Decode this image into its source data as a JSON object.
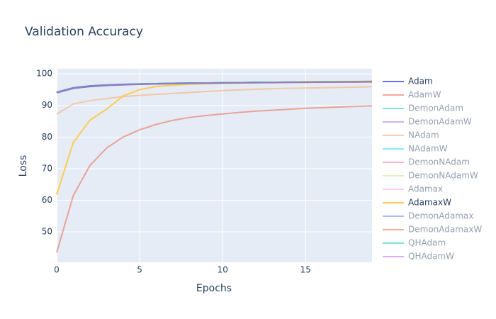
{
  "chart_data": {
    "type": "line",
    "title": "Validation Accuracy",
    "x_label": "Epochs",
    "y_label": "Loss",
    "x": [
      0,
      1,
      2,
      3,
      4,
      5,
      6,
      7,
      8,
      9,
      10,
      11,
      12,
      13,
      14,
      15,
      16,
      17,
      18,
      19
    ],
    "xlim": [
      0,
      19
    ],
    "xticks": [
      0,
      5,
      10,
      15
    ],
    "ylim": [
      40.4,
      101.6
    ],
    "yticks": [
      50,
      60,
      70,
      80,
      90,
      100
    ],
    "grid": true,
    "legend": "right",
    "series": [
      {
        "name": "Adam",
        "color": "#636efa",
        "opacity": 1,
        "values": [
          94.2,
          95.6,
          96.2,
          96.5,
          96.7,
          96.8,
          96.9,
          97.0,
          97.1,
          97.1,
          97.2,
          97.2,
          97.3,
          97.3,
          97.4,
          97.4,
          97.4,
          97.5,
          97.5,
          97.5
        ]
      },
      {
        "name": "AdamW",
        "color": "#EF553B",
        "opacity": 0.5,
        "values": [
          43.5,
          61.5,
          71,
          76.5,
          80,
          82.3,
          84,
          85.3,
          86.2,
          86.8,
          87.3,
          87.8,
          88.2,
          88.5,
          88.8,
          89.1,
          89.3,
          89.5,
          89.7,
          89.9
        ]
      },
      {
        "name": "DemonAdam",
        "color": "#00cc96",
        "opacity": 0.5,
        "values": [
          94.1,
          95.5,
          96.1,
          96.4,
          96.6,
          96.8,
          96.9,
          97.0,
          97.0,
          97.1,
          97.2,
          97.2,
          97.3,
          97.3,
          97.3,
          97.4,
          97.4,
          97.4,
          97.5,
          97.5
        ]
      },
      {
        "name": "DemonAdamW",
        "color": "#ab63fa",
        "opacity": 0.5,
        "values": [
          94.0,
          95.4,
          96.0,
          96.4,
          96.6,
          96.7,
          96.8,
          96.9,
          97.0,
          97.1,
          97.1,
          97.2,
          97.2,
          97.3,
          97.3,
          97.3,
          97.4,
          97.4,
          97.4,
          97.5
        ]
      },
      {
        "name": "NAdam",
        "color": "#FFA15A",
        "opacity": 0.5,
        "values": [
          87.2,
          90.5,
          91.5,
          92.2,
          92.8,
          93.2,
          93.5,
          93.8,
          94.1,
          94.4,
          94.7,
          94.9,
          95.1,
          95.3,
          95.4,
          95.5,
          95.6,
          95.7,
          95.8,
          95.9
        ]
      },
      {
        "name": "NAdamW",
        "color": "#19d3f3",
        "opacity": 0.5,
        "values": [
          94.0,
          95.5,
          95.9,
          96.3,
          96.6,
          96.8,
          96.9,
          97.0,
          97.1,
          97.1,
          97.2,
          97.2,
          97.3,
          97.3,
          97.4,
          97.4,
          97.5,
          97.5,
          97.5,
          97.6
        ]
      },
      {
        "name": "DemonNAdam",
        "color": "#FF6692",
        "opacity": 0.5,
        "values": [
          94.1,
          95.5,
          96.1,
          96.4,
          96.6,
          96.8,
          96.9,
          97.0,
          97.0,
          97.1,
          97.1,
          97.2,
          97.2,
          97.3,
          97.3,
          97.4,
          97.4,
          97.4,
          97.5,
          97.5
        ]
      },
      {
        "name": "DemonNAdamW",
        "color": "#B6E880",
        "opacity": 0.5,
        "values": [
          94.0,
          95.4,
          96.0,
          96.3,
          96.6,
          96.7,
          96.8,
          96.9,
          97.0,
          97.1,
          97.1,
          97.2,
          97.2,
          97.3,
          97.3,
          97.3,
          97.4,
          97.4,
          97.4,
          97.5
        ]
      },
      {
        "name": "Adamax",
        "color": "#FF97FF",
        "opacity": 0.5,
        "values": [
          94.1,
          95.5,
          96.0,
          96.4,
          96.6,
          96.7,
          96.8,
          96.9,
          97.0,
          97.1,
          97.1,
          97.2,
          97.2,
          97.3,
          97.3,
          97.4,
          97.4,
          97.4,
          97.5,
          97.5
        ]
      },
      {
        "name": "AdamaxW",
        "color": "#FECB52",
        "opacity": 1,
        "values": [
          61.8,
          78.3,
          85.3,
          88.8,
          93,
          95,
          96,
          96.4,
          96.7,
          96.9,
          97,
          97.1,
          97.2,
          97.3,
          97.4,
          97.5,
          97.5,
          97.6,
          97.6,
          97.7
        ]
      },
      {
        "name": "DemonAdamax",
        "color": "#636efa",
        "opacity": 0.5,
        "values": [
          94.0,
          95.4,
          96.0,
          96.3,
          96.5,
          96.7,
          96.8,
          96.9,
          97.0,
          97.0,
          97.1,
          97.2,
          97.2,
          97.2,
          97.3,
          97.3,
          97.4,
          97.4,
          97.4,
          97.5
        ]
      },
      {
        "name": "DemonAdamaxW",
        "color": "#EF553B",
        "opacity": 0.5,
        "values": [
          94.0,
          95.4,
          96.0,
          96.3,
          96.5,
          96.7,
          96.8,
          96.9,
          97.0,
          97.0,
          97.1,
          97.1,
          97.2,
          97.2,
          97.3,
          97.3,
          97.3,
          97.4,
          97.4,
          97.4
        ]
      },
      {
        "name": "QHAdam",
        "color": "#00cc96",
        "opacity": 0.5,
        "values": [
          94.1,
          95.5,
          96.1,
          96.4,
          96.6,
          96.8,
          96.9,
          97.0,
          97.1,
          97.1,
          97.2,
          97.2,
          97.3,
          97.3,
          97.4,
          97.4,
          97.5,
          97.5,
          97.5,
          97.6
        ]
      },
      {
        "name": "QHAdamW",
        "color": "#ab63fa",
        "opacity": 0.5,
        "values": [
          94.0,
          95.4,
          96.0,
          96.3,
          96.6,
          96.7,
          96.8,
          96.9,
          97.0,
          97.1,
          97.1,
          97.2,
          97.2,
          97.3,
          97.3,
          97.4,
          97.4,
          97.4,
          97.5,
          97.5
        ]
      }
    ]
  }
}
